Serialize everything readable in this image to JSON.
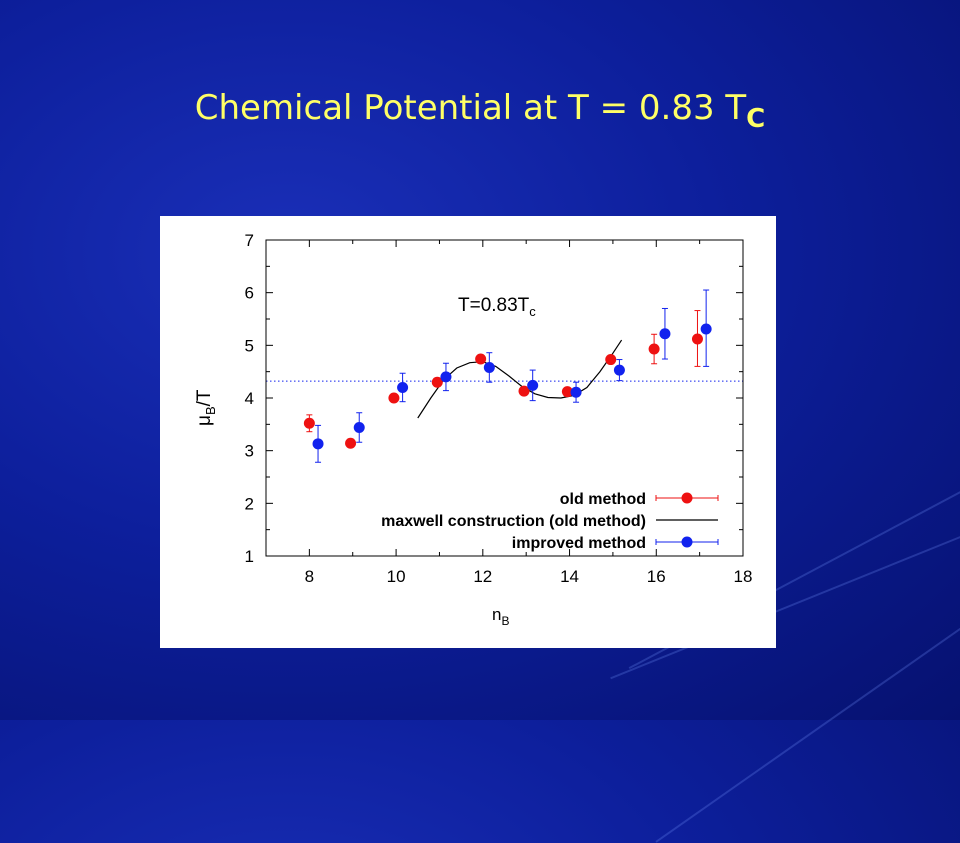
{
  "slide": {
    "title_main": "Chemical Potential at T = 0.83 T",
    "title_sub": "C"
  },
  "chart_data": {
    "type": "scatter",
    "annotation_main": "T=0.83T",
    "annotation_sub": "c",
    "xlabel_main": "n",
    "xlabel_sub": "B",
    "ylabel_main": "μ",
    "ylabel_sub": "B",
    "ylabel_suffix": "/T",
    "xlim": [
      7,
      18
    ],
    "ylim": [
      1,
      7
    ],
    "xticks": [
      8,
      10,
      12,
      14,
      16,
      18
    ],
    "yticks": [
      1,
      2,
      3,
      4,
      5,
      6,
      7
    ],
    "legend_position": "bottom-right",
    "reference_line_y": 4.32,
    "series": [
      {
        "name": "old method",
        "kind": "errorbar",
        "color": "#ee1111",
        "points": [
          {
            "x": 8.0,
            "y": 3.52,
            "lo": 3.36,
            "hi": 3.68
          },
          {
            "x": 8.95,
            "y": 3.14,
            "lo": 3.07,
            "hi": 3.21
          },
          {
            "x": 9.95,
            "y": 4.0,
            "lo": 3.93,
            "hi": 4.07
          },
          {
            "x": 10.95,
            "y": 4.3,
            "lo": 4.22,
            "hi": 4.38
          },
          {
            "x": 11.95,
            "y": 4.74,
            "lo": 4.67,
            "hi": 4.81
          },
          {
            "x": 12.95,
            "y": 4.13,
            "lo": 4.06,
            "hi": 4.2
          },
          {
            "x": 13.95,
            "y": 4.12,
            "lo": 4.05,
            "hi": 4.19
          },
          {
            "x": 14.95,
            "y": 4.73,
            "lo": 4.66,
            "hi": 4.8
          },
          {
            "x": 15.95,
            "y": 4.93,
            "lo": 4.65,
            "hi": 5.21
          },
          {
            "x": 16.95,
            "y": 5.12,
            "lo": 4.6,
            "hi": 5.66
          }
        ]
      },
      {
        "name": "maxwell construction (old method)",
        "kind": "line",
        "color": "#000000",
        "points": [
          [
            10.5,
            3.62
          ],
          [
            10.8,
            4.0
          ],
          [
            11.1,
            4.35
          ],
          [
            11.4,
            4.57
          ],
          [
            11.7,
            4.67
          ],
          [
            12.0,
            4.69
          ],
          [
            12.3,
            4.6
          ],
          [
            12.6,
            4.42
          ],
          [
            12.9,
            4.22
          ],
          [
            13.2,
            4.08
          ],
          [
            13.5,
            4.01
          ],
          [
            13.8,
            4.0
          ],
          [
            14.1,
            4.05
          ],
          [
            14.4,
            4.2
          ],
          [
            14.7,
            4.5
          ],
          [
            15.0,
            4.85
          ],
          [
            15.2,
            5.1
          ]
        ]
      },
      {
        "name": "improved method",
        "kind": "errorbar",
        "color": "#1122ee",
        "points": [
          {
            "x": 8.2,
            "y": 3.13,
            "lo": 2.78,
            "hi": 3.48
          },
          {
            "x": 9.15,
            "y": 3.44,
            "lo": 3.16,
            "hi": 3.72
          },
          {
            "x": 10.15,
            "y": 4.2,
            "lo": 3.93,
            "hi": 4.47
          },
          {
            "x": 11.15,
            "y": 4.4,
            "lo": 4.14,
            "hi": 4.66
          },
          {
            "x": 12.15,
            "y": 4.58,
            "lo": 4.3,
            "hi": 4.86
          },
          {
            "x": 13.15,
            "y": 4.24,
            "lo": 3.95,
            "hi": 4.53
          },
          {
            "x": 14.15,
            "y": 4.11,
            "lo": 3.92,
            "hi": 4.3
          },
          {
            "x": 15.15,
            "y": 4.53,
            "lo": 4.33,
            "hi": 4.73
          },
          {
            "x": 16.2,
            "y": 5.22,
            "lo": 4.74,
            "hi": 5.7
          },
          {
            "x": 17.15,
            "y": 5.31,
            "lo": 4.6,
            "hi": 6.05
          }
        ]
      }
    ]
  }
}
